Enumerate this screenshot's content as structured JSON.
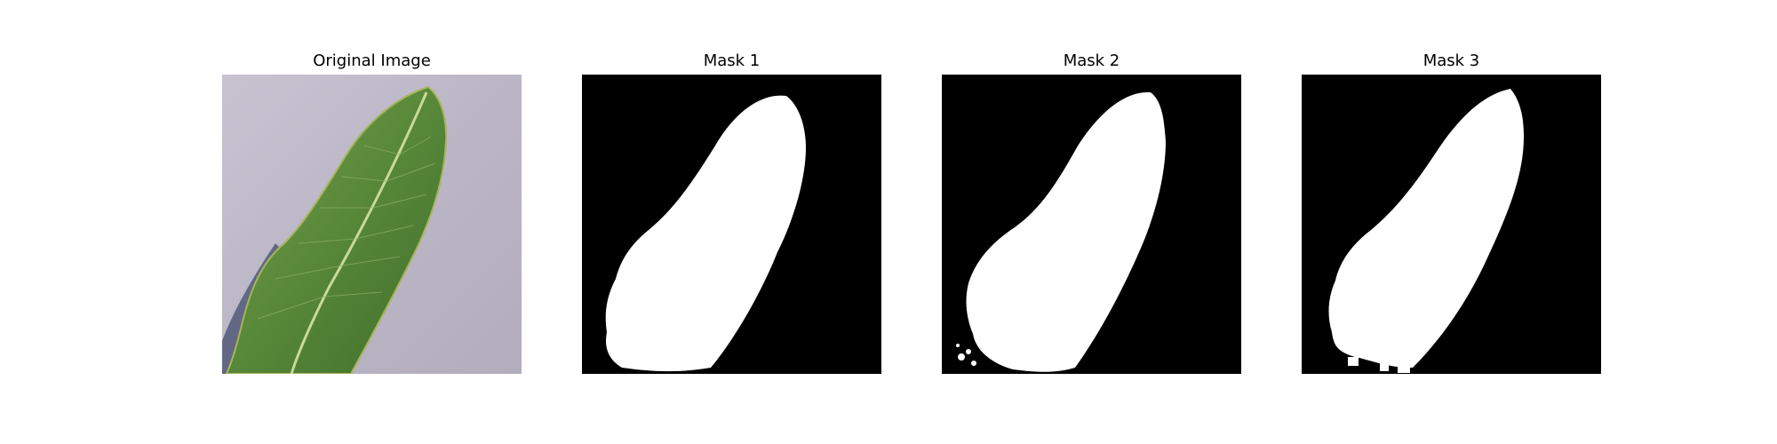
{
  "figure": {
    "panels": [
      {
        "title": "Original Image",
        "kind": "photo"
      },
      {
        "title": "Mask 1",
        "kind": "mask"
      },
      {
        "title": "Mask 2",
        "kind": "mask"
      },
      {
        "title": "Mask 3",
        "kind": "mask"
      }
    ]
  },
  "colors": {
    "background": "#ffffff",
    "mask_background": "#000000",
    "mask_foreground": "#ffffff",
    "paper": "#bdb8c8",
    "leaf": "#5a8a3a",
    "leaf_dark": "#3f6e2b",
    "midrib": "#c9d99a",
    "shadow": "#525a78"
  }
}
